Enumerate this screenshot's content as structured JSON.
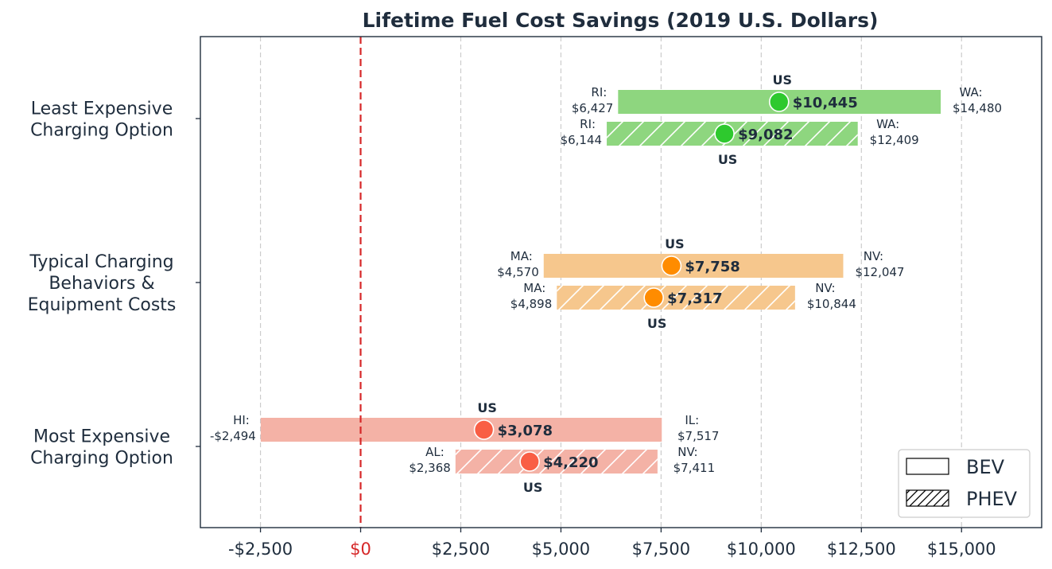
{
  "chart_data": {
    "type": "bar",
    "subtype": "range",
    "title": "Lifetime Fuel Cost Savings (2019 U.S. Dollars)",
    "xlim": [
      -4000,
      17000
    ],
    "xticks": [
      -2500,
      0,
      2500,
      5000,
      7500,
      10000,
      12500,
      15000
    ],
    "xtick_labels": [
      "-$2,500",
      "$0",
      "$2,500",
      "$5,000",
      "$7,500",
      "$10,000",
      "$12,500",
      "$15,000"
    ],
    "grid": "x-dashed",
    "reference_line": {
      "x": 0,
      "color": "#d62728",
      "style": "dashed"
    },
    "legend": {
      "placement": "bottom-right",
      "entries": [
        {
          "label": "BEV",
          "pattern": "solid"
        },
        {
          "label": "PHEV",
          "pattern": "hatched"
        }
      ]
    },
    "categories": [
      {
        "label": [
          "Least Expensive",
          "Charging Option"
        ],
        "bar_color": "#8ed67f",
        "dot_color": "#2ec92e",
        "bars": [
          {
            "type": "BEV",
            "min": 6427,
            "min_label": "RI:",
            "min_value": "$6,427",
            "max": 14480,
            "max_label": "WA:",
            "max_value": "$14,480",
            "us": 10445,
            "us_value": "$10,445",
            "us_text": "US"
          },
          {
            "type": "PHEV",
            "min": 6144,
            "min_label": "RI:",
            "min_value": "$6,144",
            "max": 12409,
            "max_label": "WA:",
            "max_value": "$12,409",
            "us": 9082,
            "us_value": "$9,082",
            "us_text": "US"
          }
        ]
      },
      {
        "label": [
          "Typical Charging",
          "Behaviors &",
          "Equipment Costs"
        ],
        "bar_color": "#f6c78d",
        "dot_color": "#ff8c00",
        "bars": [
          {
            "type": "BEV",
            "min": 4570,
            "min_label": "MA:",
            "min_value": "$4,570",
            "max": 12047,
            "max_label": "NV:",
            "max_value": "$12,047",
            "us": 7758,
            "us_value": "$7,758",
            "us_text": "US"
          },
          {
            "type": "PHEV",
            "min": 4898,
            "min_label": "MA:",
            "min_value": "$4,898",
            "max": 10844,
            "max_label": "NV:",
            "max_value": "$10,844",
            "us": 7317,
            "us_value": "$7,317",
            "us_text": "US"
          }
        ]
      },
      {
        "label": [
          "Most Expensive",
          "Charging Option"
        ],
        "bar_color": "#f4b2a6",
        "dot_color": "#f95e45",
        "bars": [
          {
            "type": "BEV",
            "min": -2494,
            "min_label": "HI:",
            "min_value": "-$2,494",
            "max": 7517,
            "max_label": "IL:",
            "max_value": "$7,517",
            "us": 3078,
            "us_value": "$3,078",
            "us_text": "US"
          },
          {
            "type": "PHEV",
            "min": 2368,
            "min_label": "AL:",
            "min_value": "$2,368",
            "max": 7411,
            "max_label": "NV:",
            "max_value": "$7,411",
            "us": 4220,
            "us_value": "$4,220",
            "us_text": "US"
          }
        ]
      }
    ]
  }
}
